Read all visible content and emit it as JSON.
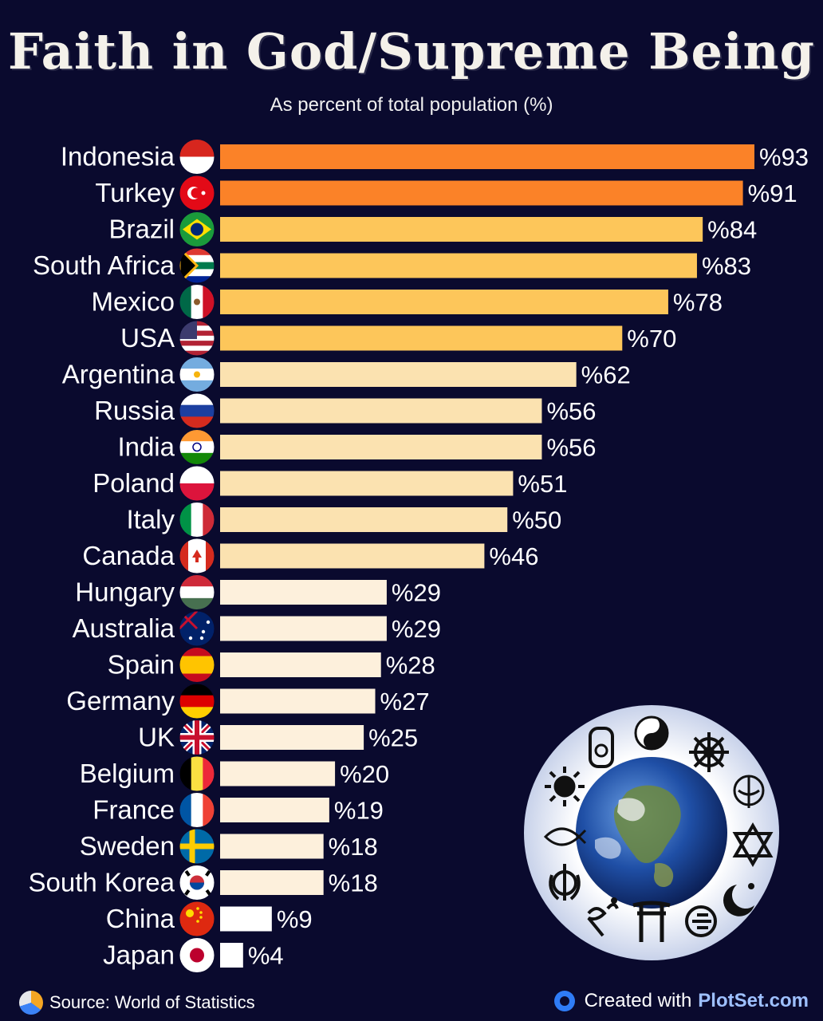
{
  "title": "Faith in God/Supreme Being",
  "subtitle": "As percent of total population (%)",
  "footer": {
    "source": "Source: World of Statistics",
    "created_prefix": "Created with",
    "brand": "PlotSet.com"
  },
  "colors": {
    "background": "#0a0a2e",
    "tier1": "#fb8228",
    "tier2": "#fdc65a",
    "tier3": "#fbe2b0",
    "tier4": "#fdf0dc",
    "tier5": "#ffffff"
  },
  "chart_data": {
    "type": "bar",
    "orientation": "horizontal",
    "title": "Faith in God/Supreme Being",
    "subtitle": "As percent of total population (%)",
    "value_prefix": "%",
    "xlim": [
      0,
      100
    ],
    "categories": [
      "Indonesia",
      "Turkey",
      "Brazil",
      "South Africa",
      "Mexico",
      "USA",
      "Argentina",
      "Russia",
      "India",
      "Poland",
      "Italy",
      "Canada",
      "Hungary",
      "Australia",
      "Spain",
      "Germany",
      "UK",
      "Belgium",
      "France",
      "Sweden",
      "South Korea",
      "China",
      "Japan"
    ],
    "values": [
      93,
      91,
      84,
      83,
      78,
      70,
      62,
      56,
      56,
      51,
      50,
      46,
      29,
      29,
      28,
      27,
      25,
      20,
      19,
      18,
      18,
      9,
      4
    ],
    "flag_icons": [
      "indonesia-flag-icon",
      "turkey-flag-icon",
      "brazil-flag-icon",
      "south-africa-flag-icon",
      "mexico-flag-icon",
      "usa-flag-icon",
      "argentina-flag-icon",
      "russia-flag-icon",
      "india-flag-icon",
      "poland-flag-icon",
      "italy-flag-icon",
      "canada-flag-icon",
      "hungary-flag-icon",
      "australia-flag-icon",
      "spain-flag-icon",
      "germany-flag-icon",
      "uk-flag-icon",
      "belgium-flag-icon",
      "france-flag-icon",
      "sweden-flag-icon",
      "south-korea-flag-icon",
      "china-flag-icon",
      "japan-flag-icon"
    ],
    "grid": false,
    "legend": "none"
  }
}
